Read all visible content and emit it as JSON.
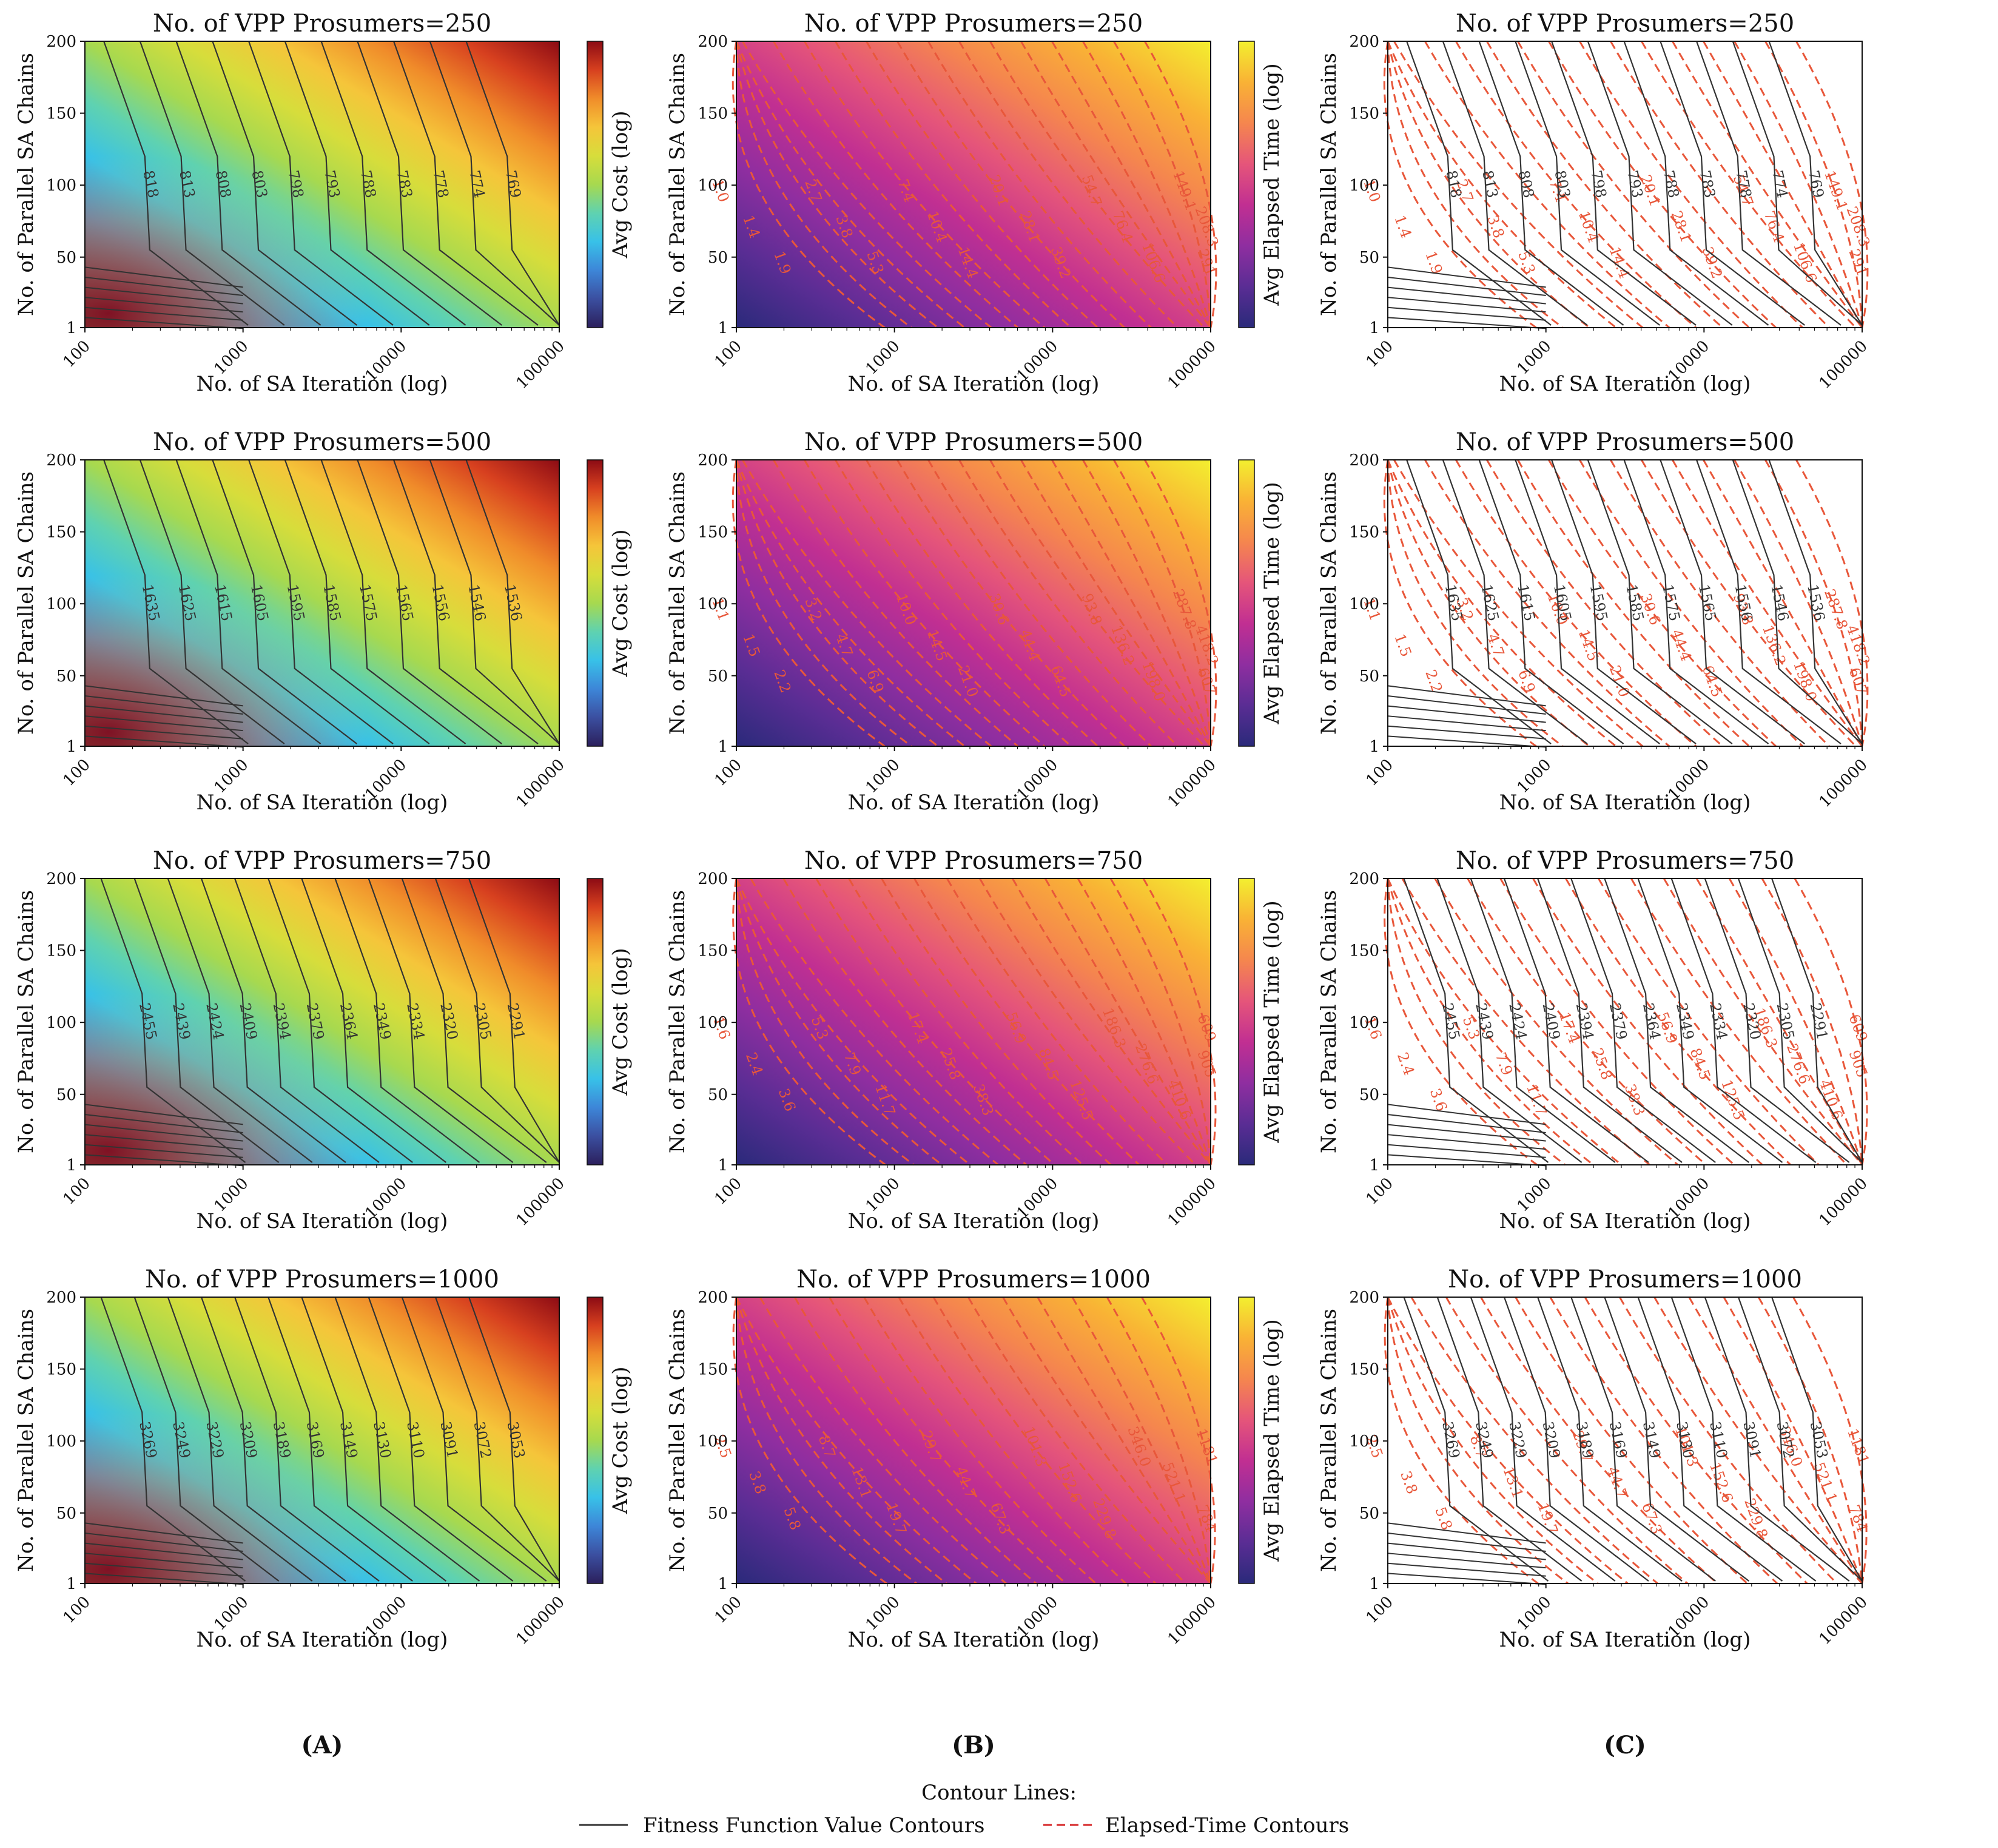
{
  "chart_data": {
    "type": "contour",
    "panel_letters": [
      "(A)",
      "(B)",
      "(C)"
    ],
    "axes": {
      "xlabel": "No. of SA Iteration (log)",
      "ylabel": "No. of Parallel SA Chains",
      "x_ticks": [
        "100",
        "1000",
        "10000",
        "100000"
      ],
      "y_ticks": [
        "1",
        "50",
        "100",
        "150",
        "200"
      ],
      "xscale": "log",
      "xlim": [
        100,
        100000
      ],
      "ylim": [
        1,
        200
      ]
    },
    "colorbar_labels": {
      "cost": "Avg Cost (log)",
      "time": "Avg Elapsed Time (log)"
    },
    "colormaps": {
      "cost": [
        "#2b1f5c",
        "#3b4fa0",
        "#3d86d8",
        "#38c1e8",
        "#5fd2b0",
        "#a7d94f",
        "#d7dd3b",
        "#f5c53a",
        "#f08c2a",
        "#d7401f",
        "#8c0b14"
      ],
      "time": [
        "#2a2a7a",
        "#5a2d94",
        "#8f2ea0",
        "#c12f92",
        "#e5557a",
        "#f5864e",
        "#f9b235",
        "#f3ef2f"
      ]
    },
    "legend": {
      "title": "Contour Lines:",
      "entries": [
        {
          "label": "Fitness Function Value Contours",
          "style": "solid",
          "color": "#333333"
        },
        {
          "label": "Elapsed-Time Contours",
          "style": "dashed",
          "color": "#d62728"
        }
      ]
    },
    "rows": [
      {
        "title": "No. of VPP Prosumers=250",
        "cost_levels": [
          "818",
          "813",
          "808",
          "803",
          "798",
          "793",
          "788",
          "783",
          "778",
          "774",
          "769"
        ],
        "time_levels": [
          "1.0",
          "1.4",
          "1.9",
          "2.7",
          "3.8",
          "5.3",
          "7.4",
          "10.4",
          "14.4",
          "20.1",
          "28.1",
          "39.2",
          "54.7",
          "76.4",
          "106.6",
          "149.1",
          "208.3",
          "291"
        ]
      },
      {
        "title": "No. of VPP Prosumers=500",
        "cost_levels": [
          "1635",
          "1625",
          "1615",
          "1605",
          "1595",
          "1585",
          "1575",
          "1565",
          "1556",
          "1546",
          "1536"
        ],
        "time_levels": [
          "1.1",
          "1.5",
          "2.2",
          "3.2",
          "4.7",
          "6.9",
          "10.0",
          "14.5",
          "21.0",
          "30.6",
          "44.4",
          "64.5",
          "93.8",
          "136.2",
          "198.0",
          "287.8",
          "418.2",
          "607"
        ]
      },
      {
        "title": "No. of VPP Prosumers=750",
        "cost_levels": [
          "2455",
          "2439",
          "2424",
          "2409",
          "2394",
          "2379",
          "2364",
          "2349",
          "2334",
          "2320",
          "2305",
          "2291"
        ],
        "time_levels": [
          "1.6",
          "2.4",
          "3.6",
          "5.3",
          "7.9",
          "11.7",
          "17.4",
          "25.8",
          "38.3",
          "56.9",
          "84.5",
          "125.5",
          "186.3",
          "276.6",
          "410.6",
          "609",
          "905"
        ]
      },
      {
        "title": "No. of VPP Prosumers=1000",
        "cost_levels": [
          "3269",
          "3249",
          "3229",
          "3209",
          "3189",
          "3169",
          "3149",
          "3130",
          "3110",
          "3091",
          "3072",
          "3053"
        ],
        "time_levels": [
          "2.5",
          "3.8",
          "5.8",
          "8.7",
          "13.1",
          "19.7",
          "29.7",
          "44.7",
          "67.3",
          "101.3",
          "152.6",
          "229.8",
          "346.0",
          "521.1",
          "784",
          "1181"
        ]
      }
    ]
  }
}
